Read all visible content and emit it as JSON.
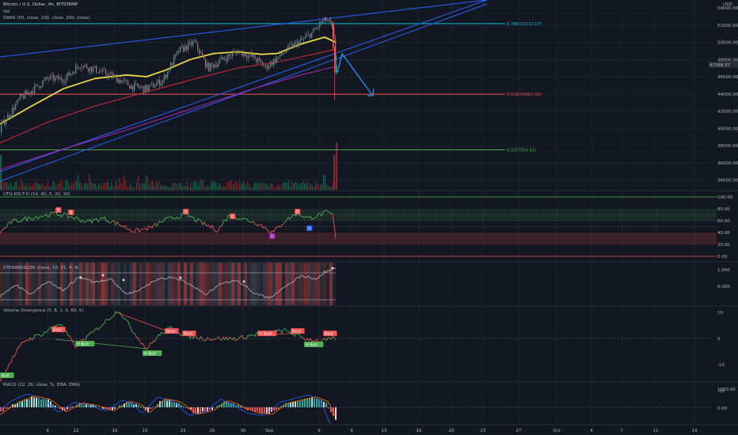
{
  "header": {
    "symbol": "Bitcoin / U.S. Dollar, 4h, BITSTAMP",
    "vol_label": "Vol",
    "sma_label": "SMAS (50, close, 100, close, 200, close)",
    "currency": "USD"
  },
  "panes": {
    "rsi_label": "UTG-RSI-T-D (14, 60, 5, 20, 30)",
    "steam_label": "STEAMROLLER (close, 10, 21, 4, 4)",
    "voldiv_label": "Volume Divergence (5, 8, 1, 5, 60, 5)",
    "macd_label": "MACD (12, 26, close, %, EMA, EMA)"
  },
  "price_axis": {
    "ticks": [
      "54000.00",
      "52000.00",
      "50000.00",
      "48000.00",
      "46000.00",
      "44000.00",
      "42000.00",
      "40000.00",
      "38000.00",
      "36000.00",
      "34000.00"
    ],
    "last_price": "47388.57"
  },
  "rsi_axis": [
    "100.00",
    "80.00",
    "60.00",
    "40.00",
    "20.00",
    "0.00"
  ],
  "steam_axis": [
    "1.000",
    "0.000"
  ],
  "voldiv_axis": [
    "10",
    "0",
    "-10",
    "-20"
  ],
  "macd_axis": [
    "1000.00",
    "0.00"
  ],
  "time_axis": [
    "9",
    "12",
    "16",
    "19",
    "23",
    "26",
    "30",
    "Sep",
    "6",
    "9",
    "13",
    "16",
    "20",
    "23",
    "27",
    "Oct",
    "4",
    "7",
    "11",
    "14"
  ],
  "fib": {
    "f786": "0.786(52172.17)",
    "f618": "0.618(43967.02)",
    "f5": "0.5(37504.91)"
  },
  "signals": {
    "bear": "Bear",
    "hbull": "H Bull",
    "hbear": "H Bear",
    "bull": "Bull",
    "rsi_b": "B",
    "rsi_d": "D",
    "rsi_h": "H"
  },
  "colors": {
    "bull": "#26a69a",
    "bear": "#ef5350",
    "sma50": "#e8d84a",
    "sma100": "#c42b3a",
    "sma200": "#9c27b0",
    "trend": "#2962ff",
    "fib786": "#00bcd4",
    "fib618": "#ef5350",
    "fib5": "#4caf50",
    "arrow": "#2196f3"
  },
  "chart_data": [
    {
      "type": "candlestick",
      "title": "Bitcoin / U.S. Dollar, 4h, BITSTAMP",
      "ylabel": "USD",
      "ylim": [
        33500,
        54800
      ],
      "x_ticks": [
        "9",
        "12",
        "16",
        "19",
        "23",
        "26",
        "30",
        "Sep",
        "6",
        "9",
        "13",
        "16",
        "20",
        "23",
        "27",
        "Oct",
        "4",
        "7",
        "11",
        "14"
      ],
      "last_price": 47388.57,
      "fib_levels": [
        {
          "label": "0.786",
          "value": 52172.17
        },
        {
          "label": "0.618",
          "value": 43967.02
        },
        {
          "label": "0.5",
          "value": 37504.91
        }
      ],
      "close_path_approx": [
        {
          "x": "Aug 5",
          "y": 40200
        },
        {
          "x": "Aug 7",
          "y": 43500
        },
        {
          "x": "Aug 9",
          "y": 45800
        },
        {
          "x": "Aug 12",
          "y": 45700
        },
        {
          "x": "Aug 14",
          "y": 47400
        },
        {
          "x": "Aug 16",
          "y": 46100
        },
        {
          "x": "Aug 18",
          "y": 44600
        },
        {
          "x": "Aug 21",
          "y": 49000
        },
        {
          "x": "Aug 23",
          "y": 50000
        },
        {
          "x": "Aug 26",
          "y": 47000
        },
        {
          "x": "Aug 28",
          "y": 49000
        },
        {
          "x": "Aug 31",
          "y": 47100
        },
        {
          "x": "Sep 2",
          "y": 49400
        },
        {
          "x": "Sep 5",
          "y": 51200
        },
        {
          "x": "Sep 6",
          "y": 52600
        },
        {
          "x": "Sep 7",
          "y": 46500
        },
        {
          "x": "Sep 7",
          "y": 47388.57
        }
      ]
    },
    {
      "type": "line",
      "title": "UTG-RSI-T-D (14, 60, 5, 20, 30)",
      "ylim": [
        0,
        100
      ],
      "y_ticks": [
        100,
        80,
        60,
        40,
        20,
        0
      ],
      "markers": [
        "B",
        "B",
        "B",
        "B",
        "B",
        "D",
        "H"
      ]
    },
    {
      "type": "line",
      "title": "STEAMROLLER (close, 10, 21, 4, 4)",
      "y_ticks": [
        1.0,
        0.0
      ]
    },
    {
      "type": "line",
      "title": "Volume Divergence (5, 8, 1, 5, 60, 5)",
      "ylim": [
        -22,
        13
      ],
      "y_ticks": [
        10,
        0,
        -10,
        -20
      ],
      "markers": [
        "Bull",
        "Bear",
        "H Bull",
        "H Bull",
        "Bear",
        "Bear",
        "H Bear",
        "Bear",
        "H Bull",
        "Bear"
      ]
    },
    {
      "type": "bar",
      "title": "MACD (12, 26, close, %, EMA, EMA)",
      "y_ticks": [
        1000,
        0
      ]
    }
  ]
}
